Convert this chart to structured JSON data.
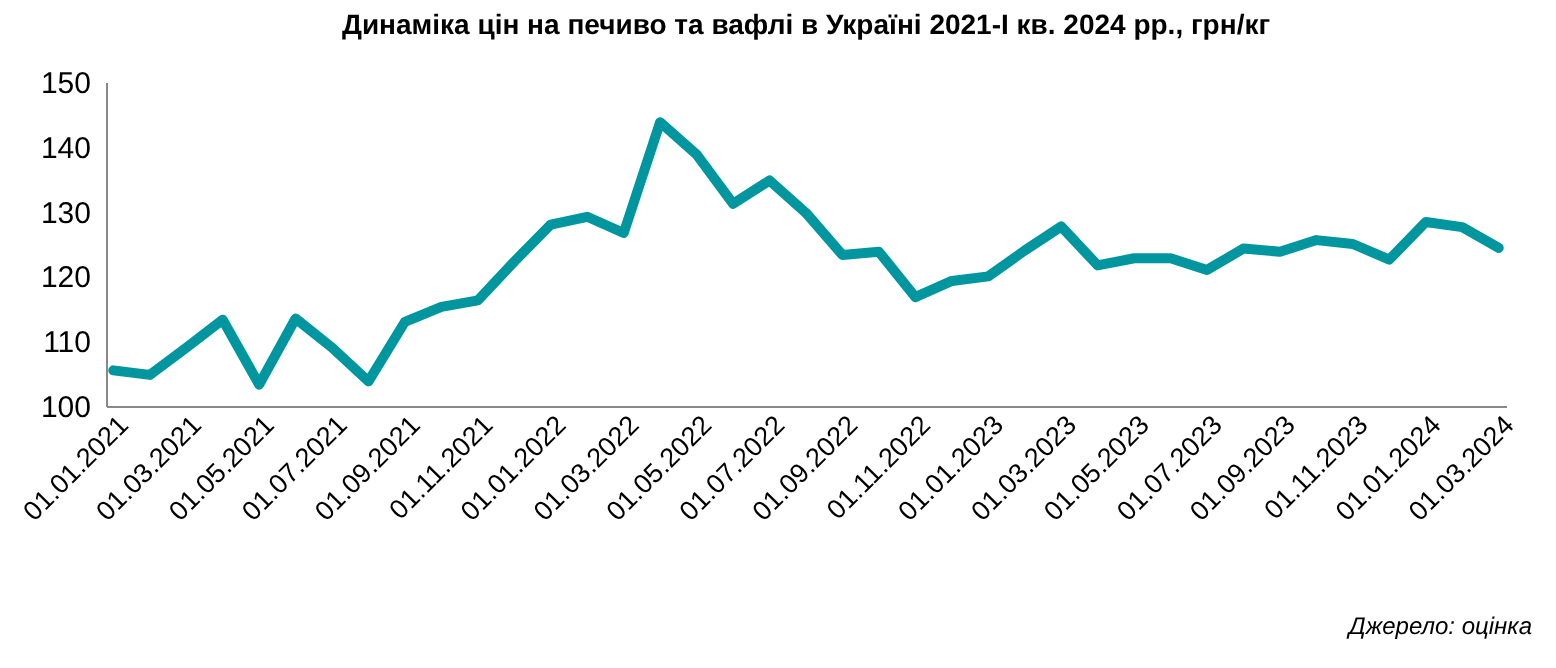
{
  "chart_data": {
    "type": "line",
    "title": "Динаміка цін на печиво та вафлі в Україні 2021-І кв. 2024 рр., грн/кг",
    "categories": [
      "01.01.2021",
      null,
      "01.03.2021",
      null,
      "01.05.2021",
      null,
      "01.07.2021",
      null,
      "01.09.2021",
      null,
      "01.11.2021",
      null,
      "01.01.2022",
      null,
      "01.03.2022",
      null,
      "01.05.2022",
      null,
      "01.07.2022",
      null,
      "01.09.2022",
      null,
      "01.11.2022",
      null,
      "01.01.2023",
      null,
      "01.03.2023",
      null,
      "01.05.2023",
      null,
      "01.07.2023",
      null,
      "01.09.2023",
      null,
      "01.11.2023",
      null,
      "01.01.2024",
      null,
      "01.03.2024"
    ],
    "series": [
      {
        "color": "#00969f",
        "values": [
          105.5,
          104.8,
          109,
          113.3,
          103.3,
          113.5,
          109,
          103.8,
          113,
          115.3,
          116.3,
          122.3,
          128,
          129.2,
          126.7,
          143.8,
          138.8,
          131.2,
          134.8,
          129.8,
          123.3,
          123.8,
          116.8,
          119.3,
          120,
          124,
          127.7,
          121.7,
          122.8,
          122.8,
          121,
          124.3,
          123.8,
          125.6,
          125,
          122.6,
          128.4,
          127.6,
          124.4
        ]
      }
    ],
    "ylim": [
      100,
      150
    ],
    "yticks": [
      100,
      110,
      120,
      130,
      140,
      150
    ],
    "grid": false,
    "marker": "none",
    "line_style": "solid",
    "annotations": [
      "Джерело: оцінка"
    ]
  }
}
